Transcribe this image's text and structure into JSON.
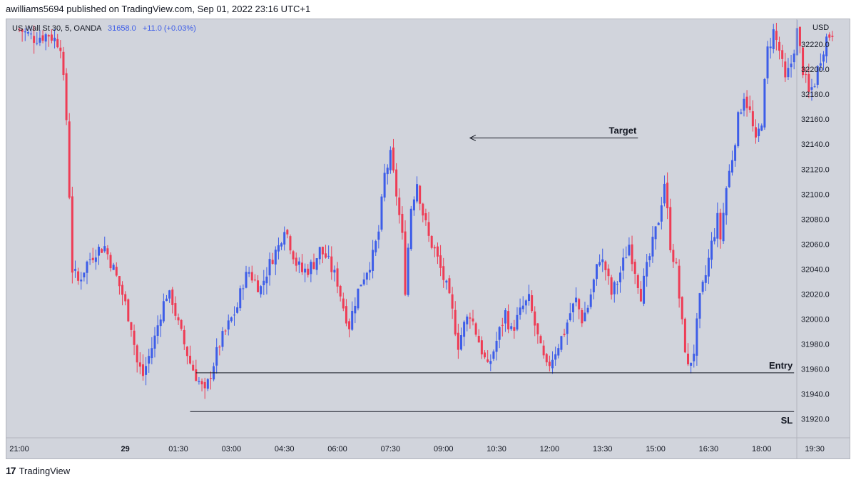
{
  "header": {
    "published_text": "awilliams5694 published on TradingView.com, Sep 01, 2022 23:16 UTC+1"
  },
  "legend": {
    "symbol": "US Wall St 30, 5, OANDA",
    "price": "31658.0",
    "change": "+11.0 (+0.03%)"
  },
  "footer": {
    "logo_mark": "17",
    "brand": "TradingView"
  },
  "colors": {
    "up": "#3d5de8",
    "down": "#ee3c55",
    "background": "#d1d4dc",
    "text": "#131722",
    "legend_value": "#3d5de8"
  },
  "chart_data": {
    "type": "candlestick",
    "currency": "USD",
    "ylim": [
      31905,
      32240
    ],
    "y_ticks": [
      32220,
      32200,
      32180,
      32160,
      32140,
      32120,
      32100,
      32080,
      32060,
      32040,
      32020,
      32000,
      31980,
      31960,
      31940,
      31920
    ],
    "y_tick_labels": [
      "32220.0",
      "32200.0",
      "32180.0",
      "32160.0",
      "32140.0",
      "32120.0",
      "32100.0",
      "32080.0",
      "32060.0",
      "32040.0",
      "32020.0",
      "32000.0",
      "31980.0",
      "31960.0",
      "31940.0",
      "31920.0"
    ],
    "x_ticks": [
      {
        "label": "21:00",
        "index": 0,
        "bold": false
      },
      {
        "label": "29",
        "index": 36,
        "bold": true
      },
      {
        "label": "01:30",
        "index": 54,
        "bold": false
      },
      {
        "label": "03:00",
        "index": 72,
        "bold": false
      },
      {
        "label": "04:30",
        "index": 90,
        "bold": false
      },
      {
        "label": "06:00",
        "index": 108,
        "bold": false
      },
      {
        "label": "07:30",
        "index": 126,
        "bold": false
      },
      {
        "label": "09:00",
        "index": 144,
        "bold": false
      },
      {
        "label": "10:30",
        "index": 162,
        "bold": false
      },
      {
        "label": "12:00",
        "index": 180,
        "bold": false
      },
      {
        "label": "13:30",
        "index": 198,
        "bold": false
      },
      {
        "label": "15:00",
        "index": 216,
        "bold": false
      },
      {
        "label": "16:30",
        "index": 234,
        "bold": false
      },
      {
        "label": "18:00",
        "index": 252,
        "bold": false
      },
      {
        "label": "19:30",
        "index": 270,
        "bold": false
      }
    ],
    "bar_count": 277,
    "close_path": [
      [
        0,
        32232
      ],
      [
        5,
        32225
      ],
      [
        10,
        32228
      ],
      [
        14,
        32220
      ],
      [
        16,
        32160
      ],
      [
        18,
        32040
      ],
      [
        20,
        32030
      ],
      [
        23,
        32045
      ],
      [
        26,
        32055
      ],
      [
        29,
        32058
      ],
      [
        32,
        32040
      ],
      [
        35,
        32020
      ],
      [
        38,
        31995
      ],
      [
        40,
        31965
      ],
      [
        42,
        31955
      ],
      [
        44,
        31970
      ],
      [
        46,
        31985
      ],
      [
        48,
        32005
      ],
      [
        50,
        32020
      ],
      [
        52,
        32015
      ],
      [
        54,
        31995
      ],
      [
        56,
        31980
      ],
      [
        58,
        31965
      ],
      [
        60,
        31955
      ],
      [
        62,
        31945
      ],
      [
        63,
        31940
      ],
      [
        66,
        31965
      ],
      [
        68,
        31980
      ],
      [
        70,
        31990
      ],
      [
        72,
        32000
      ],
      [
        74,
        32010
      ],
      [
        76,
        32030
      ],
      [
        78,
        32038
      ],
      [
        80,
        32030
      ],
      [
        82,
        32025
      ],
      [
        84,
        32038
      ],
      [
        86,
        32050
      ],
      [
        88,
        32058
      ],
      [
        90,
        32075
      ],
      [
        92,
        32060
      ],
      [
        94,
        32045
      ],
      [
        96,
        32038
      ],
      [
        98,
        32040
      ],
      [
        100,
        32045
      ],
      [
        102,
        32055
      ],
      [
        104,
        32050
      ],
      [
        106,
        32040
      ],
      [
        108,
        32030
      ],
      [
        110,
        32010
      ],
      [
        112,
        31995
      ],
      [
        114,
        32015
      ],
      [
        116,
        32030
      ],
      [
        118,
        32040
      ],
      [
        120,
        32050
      ],
      [
        122,
        32070
      ],
      [
        124,
        32115
      ],
      [
        126,
        32130
      ],
      [
        128,
        32100
      ],
      [
        130,
        32065
      ],
      [
        131,
        32025
      ],
      [
        133,
        32090
      ],
      [
        135,
        32110
      ],
      [
        137,
        32085
      ],
      [
        139,
        32065
      ],
      [
        141,
        32055
      ],
      [
        143,
        32040
      ],
      [
        145,
        32025
      ],
      [
        147,
        32005
      ],
      [
        149,
        31980
      ],
      [
        151,
        31995
      ],
      [
        153,
        32005
      ],
      [
        155,
        31990
      ],
      [
        157,
        31975
      ],
      [
        159,
        31960
      ],
      [
        161,
        31975
      ],
      [
        163,
        31990
      ],
      [
        165,
        32005
      ],
      [
        167,
        31990
      ],
      [
        169,
        32000
      ],
      [
        171,
        32010
      ],
      [
        173,
        32015
      ],
      [
        175,
        31995
      ],
      [
        177,
        31975
      ],
      [
        179,
        31960
      ],
      [
        181,
        31970
      ],
      [
        183,
        31980
      ],
      [
        185,
        31990
      ],
      [
        187,
        32005
      ],
      [
        189,
        32015
      ],
      [
        191,
        32000
      ],
      [
        193,
        32010
      ],
      [
        195,
        32030
      ],
      [
        197,
        32050
      ],
      [
        199,
        32040
      ],
      [
        201,
        32020
      ],
      [
        203,
        32030
      ],
      [
        205,
        32045
      ],
      [
        207,
        32060
      ],
      [
        209,
        32040
      ],
      [
        211,
        32020
      ],
      [
        213,
        32040
      ],
      [
        215,
        32060
      ],
      [
        217,
        32080
      ],
      [
        219,
        32110
      ],
      [
        221,
        32060
      ],
      [
        223,
        32040
      ],
      [
        225,
        31995
      ],
      [
        227,
        31960
      ],
      [
        229,
        31975
      ],
      [
        231,
        32015
      ],
      [
        233,
        32035
      ],
      [
        235,
        32060
      ],
      [
        237,
        32080
      ],
      [
        238,
        32065
      ],
      [
        240,
        32105
      ],
      [
        242,
        32130
      ],
      [
        244,
        32160
      ],
      [
        246,
        32180
      ],
      [
        248,
        32165
      ],
      [
        250,
        32140
      ],
      [
        252,
        32160
      ],
      [
        254,
        32215
      ],
      [
        256,
        32230
      ],
      [
        258,
        32215
      ],
      [
        260,
        32190
      ],
      [
        262,
        32205
      ],
      [
        264,
        32230
      ],
      [
        266,
        32200
      ],
      [
        268,
        32180
      ],
      [
        270,
        32190
      ],
      [
        272,
        32210
      ],
      [
        274,
        32225
      ],
      [
        276,
        32230
      ]
    ],
    "annotations": [
      {
        "label": "Target",
        "price": 32145,
        "x_start": 210,
        "x_end": 153,
        "type": "arrow-left"
      },
      {
        "label": "Entry",
        "price": 31957,
        "x_start": 60,
        "x_end": 263,
        "type": "line"
      },
      {
        "label": "SL",
        "price": 31926,
        "x_start": 58,
        "x_end": 263,
        "type": "line"
      }
    ]
  }
}
